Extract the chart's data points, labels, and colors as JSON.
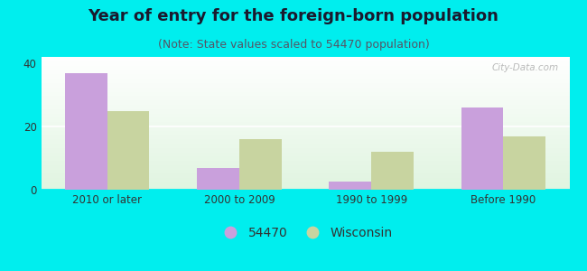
{
  "title": "Year of entry for the foreign-born population",
  "subtitle": "(Note: State values scaled to 54470 population)",
  "categories": [
    "2010 or later",
    "2000 to 2009",
    "1990 to 1999",
    "Before 1990"
  ],
  "values_54470": [
    37,
    7,
    2.5,
    26
  ],
  "values_wisconsin": [
    25,
    16,
    12,
    17
  ],
  "color_54470": "#c9a0dc",
  "color_wisconsin": "#c8d4a0",
  "ylim": [
    0,
    42
  ],
  "yticks": [
    0,
    20,
    40
  ],
  "background_color": "#00eeee",
  "legend_label_54470": "54470",
  "legend_label_wisconsin": "Wisconsin",
  "bar_width": 0.32,
  "title_fontsize": 13,
  "subtitle_fontsize": 9,
  "tick_fontsize": 8.5,
  "legend_fontsize": 10,
  "watermark": "City-Data.com"
}
